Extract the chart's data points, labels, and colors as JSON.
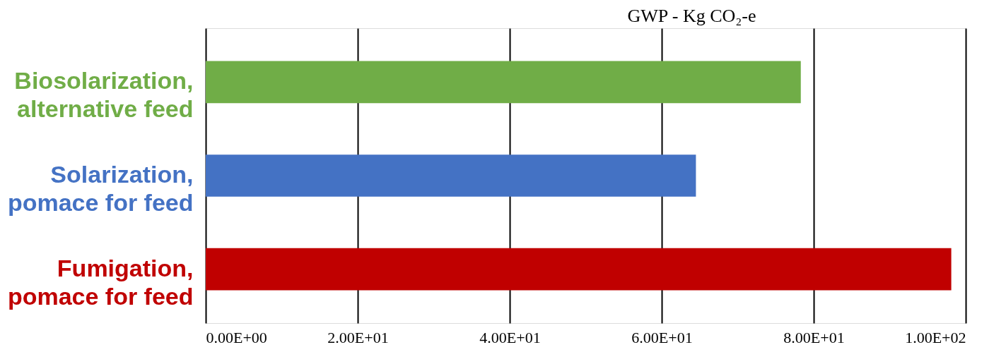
{
  "chart_data": {
    "type": "bar",
    "orientation": "horizontal",
    "title": "GWP - Kg CO₂-e",
    "categories": [
      "Biosolarization,\nalternative feed",
      "Solarization,\npomace for feed",
      "Fumigation,\npomace for feed"
    ],
    "values": [
      78.3,
      64.5,
      98.1
    ],
    "colors": [
      "#70ad47",
      "#4472c4",
      "#c00000"
    ],
    "xlim": [
      0,
      100
    ],
    "xticks": [
      {
        "value": 0,
        "label": "0.00E+00"
      },
      {
        "value": 20,
        "label": "2.00E+01"
      },
      {
        "value": 40,
        "label": "4.00E+01"
      },
      {
        "value": 60,
        "label": "6.00E+01"
      },
      {
        "value": 80,
        "label": "8.00E+01"
      },
      {
        "value": 100,
        "label": "1.00E+02"
      }
    ],
    "grid": "x"
  }
}
